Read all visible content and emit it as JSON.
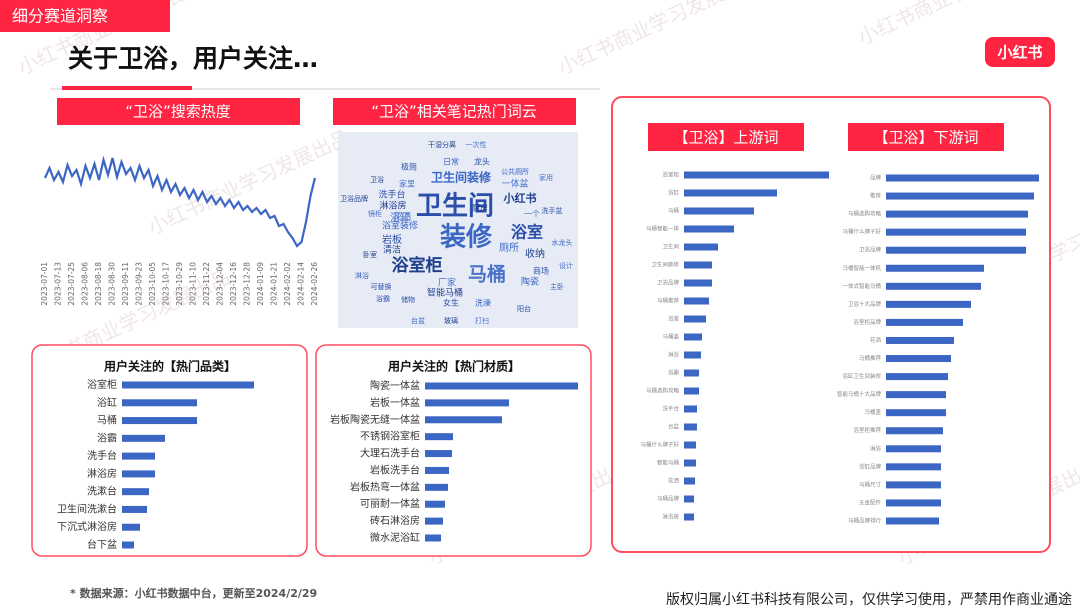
{
  "header": {
    "tag": "细分赛道洞察",
    "title": "关于卫浴，用户关注…",
    "logo": "小红书"
  },
  "watermark": "小红书商业学习发展出品",
  "word_cloud": {
    "title": "“卫浴”相关笔记热门词云",
    "words": [
      "卫生间",
      "装修",
      "浴室柜",
      "马桶",
      "浴室",
      "卫生间装修",
      "小红书",
      "浴缸",
      "岩板",
      "浴室装修",
      "淋浴房",
      "花洒",
      "洗手台",
      "厕所",
      "收纳",
      "一体盆",
      "商场",
      "陶瓷",
      "智能马桶",
      "厂家",
      "女生",
      "洗澡",
      "清洁",
      "家里",
      "极简",
      "日常",
      "干湿分离",
      "一次性",
      "龙头",
      "公共厕所",
      "卫浴",
      "一个",
      "洗手盆",
      "水龙头",
      "厨房",
      "镜柜",
      "可替换",
      "台盆",
      "玻璃",
      "打扫",
      "阳台",
      "主卧",
      "卧室",
      "家用",
      "浴霸",
      "淋浴",
      "卫浴品牌",
      "设计",
      "储物"
    ]
  },
  "chart_data": [
    {
      "type": "line",
      "title": "“卫浴”搜索热度",
      "color": "#3c66c4",
      "ylim": [
        0,
        100
      ],
      "categories": [
        "2023-07-01",
        null,
        null,
        "2023-07-13",
        null,
        null,
        "2023-07-25",
        null,
        null,
        "2023-08-06",
        null,
        null,
        "2023-08-18",
        null,
        null,
        "2023-08-30",
        null,
        null,
        "2023-09-11",
        null,
        null,
        "2023-09-23",
        null,
        null,
        "2023-10-05",
        null,
        null,
        "2023-10-17",
        null,
        null,
        "2023-10-29",
        null,
        null,
        "2023-11-10",
        null,
        null,
        "2023-11-22",
        null,
        null,
        "2023-12-04",
        null,
        null,
        "2023-12-16",
        null,
        null,
        "2023-12-28",
        null,
        null,
        "2024-01-09",
        null,
        null,
        "2024-01-21",
        null,
        null,
        "2024-02-02",
        null,
        null,
        "2024-02-14",
        null,
        null,
        "2024-02-26"
      ],
      "values": [
        72,
        82,
        70,
        78,
        68,
        85,
        74,
        80,
        66,
        84,
        72,
        86,
        70,
        90,
        75,
        92,
        73,
        88,
        76,
        82,
        70,
        84,
        72,
        80,
        64,
        74,
        60,
        70,
        58,
        66,
        55,
        62,
        52,
        60,
        50,
        58,
        48,
        54,
        46,
        52,
        44,
        50,
        42,
        48,
        40,
        44,
        38,
        42,
        36,
        40,
        32,
        34,
        24,
        26,
        18,
        12,
        4,
        8,
        28,
        54,
        72
      ]
    },
    {
      "type": "hbar",
      "title": "用户关注的【热门品类】",
      "color": "#3c66c4",
      "categories": [
        "浴室柜",
        "浴缸",
        "马桶",
        "浴霸",
        "洗手台",
        "淋浴房",
        "洗漱台",
        "卫生间洗漱台",
        "下沉式淋浴房",
        "台下盆"
      ],
      "values": [
        132,
        75,
        75,
        43,
        33,
        33,
        27,
        25,
        18,
        12
      ]
    },
    {
      "type": "hbar",
      "title": "用户关注的【热门材质】",
      "color": "#3c66c4",
      "categories": [
        "陶瓷一体盆",
        "岩板一体盆",
        "岩板陶瓷无缝一体盆",
        "不锈钢浴室柜",
        "大理石洗手台",
        "岩板洗手台",
        "岩板热弯一体盆",
        "可丽耐一体盆",
        "砖石淋浴房",
        "微水泥浴缸"
      ],
      "values": [
        153,
        84,
        77,
        28,
        27,
        24,
        23,
        20,
        18,
        16
      ]
    },
    {
      "type": "hbar",
      "title": "【卫浴】上游词",
      "color": "#3c66c4",
      "categories": [
        "浴室柜",
        "浴缸",
        "马桶",
        "马桶智能一体",
        "卫生间",
        "卫生间装修",
        "卫浴品牌",
        "马桶推荐",
        "浴室",
        "马桶盖",
        "淋浴",
        "浴霸",
        "马桶选购攻略",
        "洗手台",
        "台盆",
        "马桶什么牌子好",
        "智能马桶",
        "花洒",
        "马桶品牌",
        "淋浴房"
      ],
      "values": [
        145,
        93,
        70,
        50,
        34,
        28,
        28,
        25,
        22,
        18,
        17,
        15,
        15,
        13,
        13,
        12,
        12,
        11,
        10,
        10
      ]
    },
    {
      "type": "hbar",
      "title": "【卫浴】下游词",
      "color": "#3c66c4",
      "categories": [
        "品牌",
        "推荐",
        "马桶选购攻略",
        "马桶什么牌子好",
        "卫浴品牌",
        "马桶智能一体机",
        "一体式智能马桶",
        "卫浴十大品牌",
        "浴室柜品牌",
        "花洒",
        "马桶推荐",
        "浴缸卫生间装修",
        "智能马桶十大品牌",
        "马桶盖",
        "浴室柜推荐",
        "淋浴",
        "浴缸品牌",
        "马桶尺寸",
        "五金配件",
        "马桶品牌排行"
      ],
      "values": [
        153,
        148,
        142,
        140,
        140,
        98,
        95,
        85,
        77,
        68,
        65,
        62,
        60,
        60,
        57,
        55,
        55,
        55,
        55,
        53
      ]
    }
  ],
  "footer": {
    "source": "* 数据来源：小红书数据中台，更新至2024/2/29",
    "copyright": "版权归属小红书科技有限公司，仅供学习使用，严禁用作商业通途"
  }
}
